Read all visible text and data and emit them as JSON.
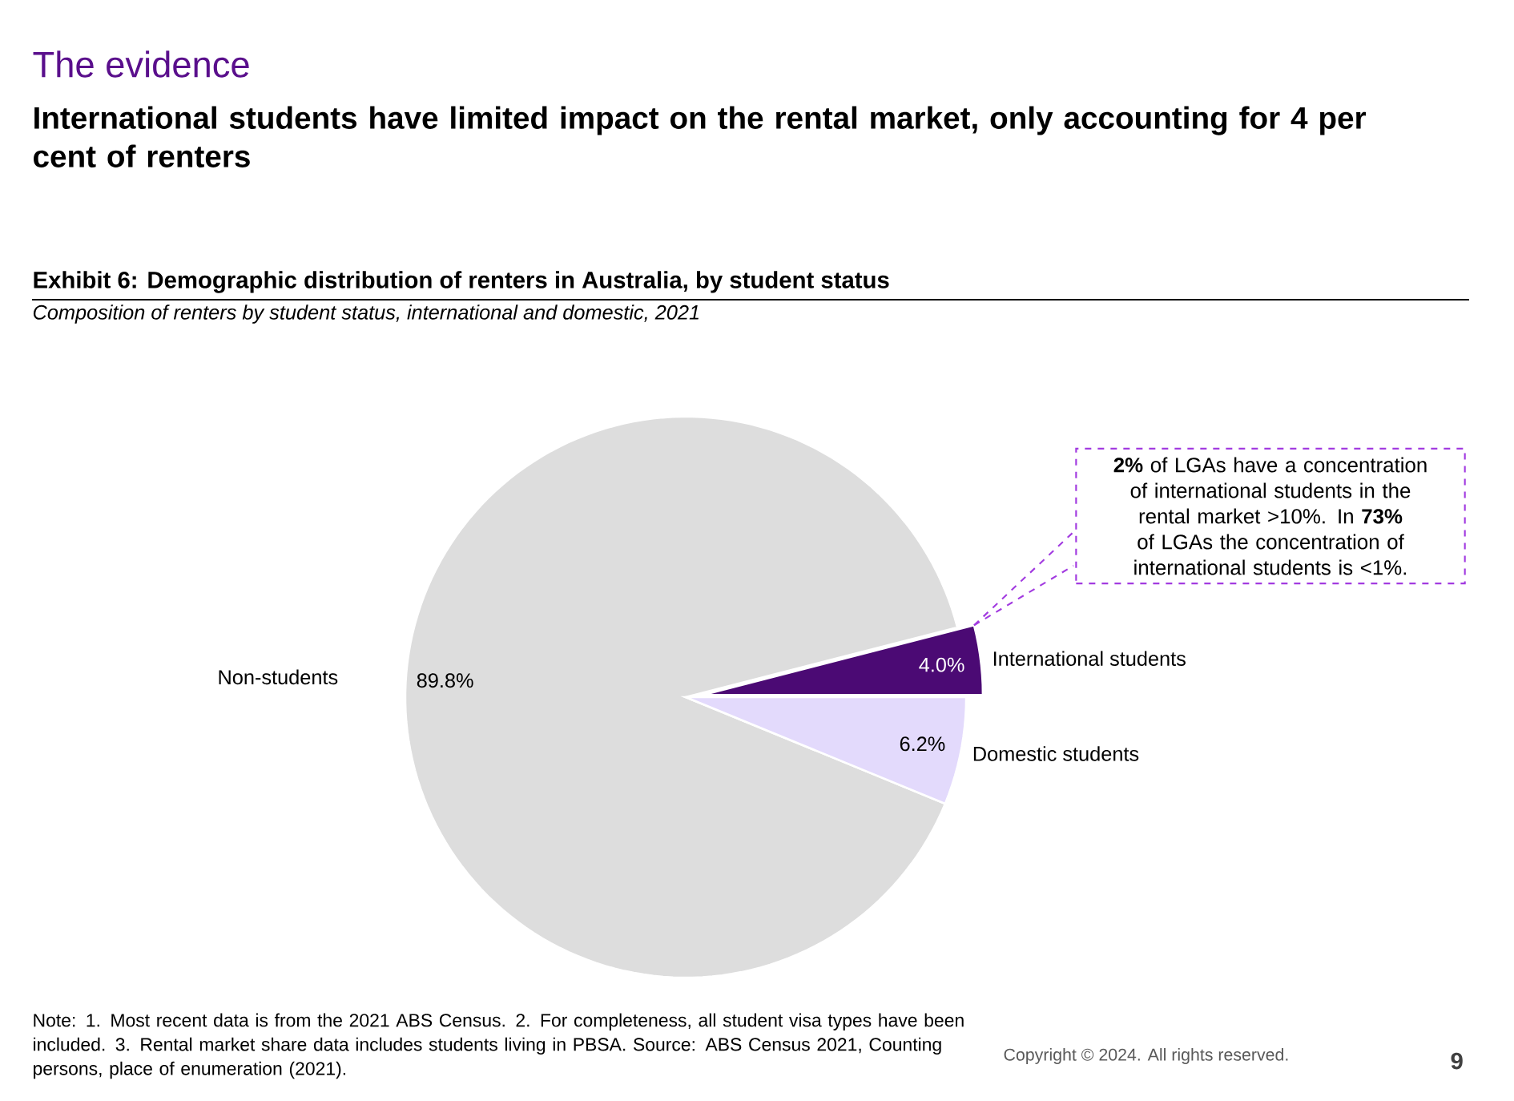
{
  "chart_data": {
    "type": "pie",
    "title": "International students have limited impact on the rental market, only accounting for 4 per cent of renters",
    "subtitle": "Exhibit 6: Demographic distribution of renters in Australia, by student status",
    "categories": [
      "International students",
      "Non-students",
      "Domestic students"
    ],
    "values": [
      4.0,
      89.8,
      6.2
    ],
    "value_labels": [
      "4.0%",
      "89.8%",
      "6.2%"
    ],
    "colors": [
      "#4b0a74",
      "#dddddd",
      "#e3dafc"
    ],
    "annotations": [
      "The evidence",
      "Composition of renters by student status, international and domestic, 2021",
      "**2%** of LGAs have a concentration of international students in the rental market >10%. In **73%** of LGAs the concentration of international students is <1%.",
      "Note: 1. Most recent data is from the 2021 ABS Census. 2. For completeness, all student visa types have been included. 3. Rental market share data includes students living in PBSA. Source: ABS Census 2021, Counting persons, place of enumeration (2021).",
      "Copyright © 2024. All rights reserved.",
      "9"
    ]
  }
}
